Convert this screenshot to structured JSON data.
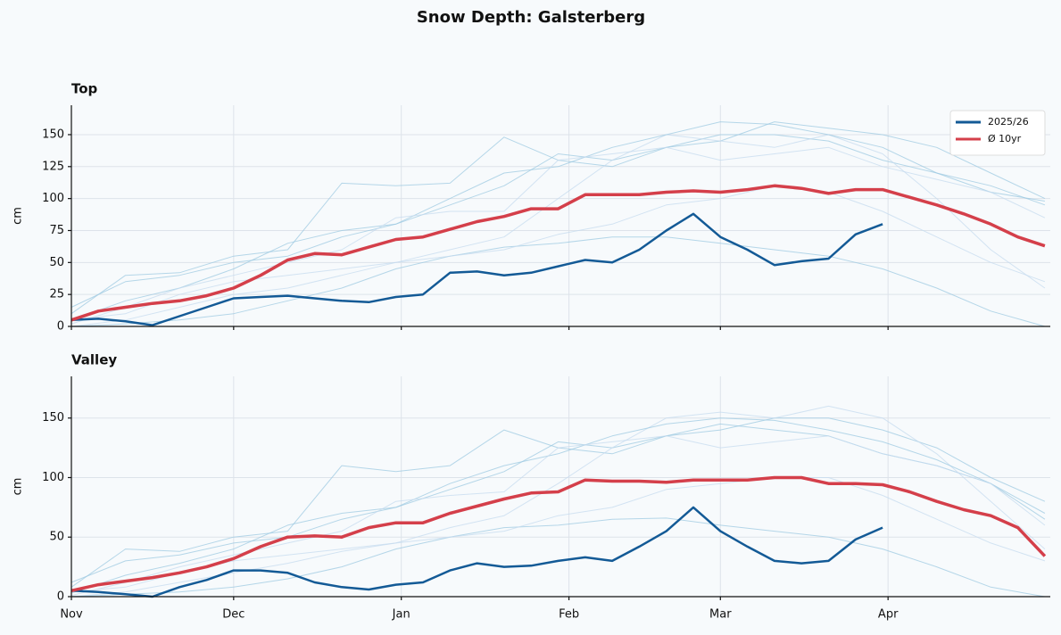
{
  "title": "Snow Depth: Galsterberg",
  "chart_data": [
    {
      "type": "line",
      "title": "Top",
      "ylabel": "cm",
      "ylim": [
        0,
        173
      ],
      "yticks": [
        0,
        25,
        50,
        75,
        100,
        125,
        150
      ],
      "xlim": [
        0,
        181
      ],
      "xticks": [
        0,
        30,
        61,
        92,
        120,
        151
      ],
      "grid": true,
      "legend": "upper right",
      "x": [
        0,
        5,
        10,
        15,
        20,
        25,
        30,
        35,
        40,
        45,
        50,
        55,
        60,
        65,
        70,
        75,
        80,
        85,
        90,
        95,
        100,
        105,
        110,
        115,
        120,
        125,
        130,
        135,
        140,
        145,
        150,
        155,
        160,
        165,
        170,
        175,
        180
      ],
      "series": [
        {
          "color": "#9ecae1",
          "x": [
            0,
            10,
            20,
            30,
            40,
            50,
            60,
            70,
            80,
            90,
            100,
            110,
            120,
            130,
            140,
            150,
            160,
            170,
            180
          ],
          "values": [
            10,
            40,
            42,
            55,
            60,
            112,
            110,
            112,
            148,
            130,
            125,
            140,
            150,
            150,
            145,
            130,
            120,
            105,
            98
          ]
        },
        {
          "color": "#9ecae1",
          "x": [
            0,
            10,
            20,
            30,
            40,
            50,
            60,
            70,
            80,
            90,
            100,
            110,
            120,
            130,
            140,
            150,
            160,
            170,
            180
          ],
          "values": [
            5,
            20,
            30,
            45,
            65,
            75,
            80,
            95,
            110,
            135,
            130,
            140,
            145,
            160,
            155,
            150,
            140,
            120,
            100
          ]
        },
        {
          "color": "#c6dbef",
          "x": [
            0,
            10,
            20,
            30,
            40,
            50,
            60,
            70,
            80,
            90,
            100,
            110,
            120,
            130,
            140,
            150,
            160,
            170,
            180
          ],
          "values": [
            0,
            5,
            15,
            25,
            30,
            40,
            50,
            60,
            70,
            100,
            130,
            150,
            145,
            140,
            150,
            135,
            100,
            60,
            30
          ]
        },
        {
          "color": "#9ecae1",
          "x": [
            0,
            10,
            20,
            30,
            40,
            50,
            60,
            70,
            80,
            90,
            100,
            110,
            120,
            130,
            140,
            150,
            160,
            170,
            180
          ],
          "values": [
            15,
            35,
            40,
            50,
            55,
            70,
            80,
            100,
            120,
            125,
            140,
            150,
            160,
            158,
            150,
            140,
            120,
            110,
            95
          ]
        },
        {
          "color": "#9ecae1",
          "x": [
            0,
            10,
            20,
            30,
            40,
            50,
            60,
            70,
            80,
            90,
            100,
            110,
            120,
            130,
            140,
            150,
            160,
            170,
            180
          ],
          "values": [
            0,
            2,
            5,
            10,
            20,
            30,
            45,
            55,
            62,
            65,
            70,
            70,
            65,
            60,
            55,
            45,
            30,
            12,
            0
          ]
        },
        {
          "color": "#c6dbef",
          "x": [
            0,
            10,
            20,
            30,
            40,
            50,
            60,
            70,
            80,
            90,
            100,
            110,
            120,
            130,
            140,
            150,
            160,
            170,
            180
          ],
          "values": [
            5,
            10,
            25,
            35,
            40,
            45,
            50,
            55,
            60,
            72,
            80,
            95,
            100,
            110,
            105,
            90,
            70,
            50,
            35
          ]
        },
        {
          "color": "#c6dbef",
          "x": [
            0,
            10,
            20,
            30,
            40,
            50,
            60,
            70,
            80,
            90,
            100,
            110,
            120,
            130,
            140,
            150,
            160,
            170,
            180
          ],
          "values": [
            2,
            15,
            30,
            40,
            50,
            60,
            85,
            90,
            90,
            130,
            135,
            140,
            130,
            135,
            140,
            125,
            115,
            105,
            85
          ]
        },
        {
          "name": "2025/26",
          "color": "#135a96",
          "values": [
            5,
            6,
            4,
            1,
            8,
            15,
            22,
            23,
            24,
            22,
            20,
            19,
            23,
            25,
            42,
            43,
            40,
            42,
            47,
            52,
            50,
            60,
            75,
            88,
            70,
            60,
            48,
            51,
            53,
            72,
            80,
            null,
            null,
            null,
            null,
            null,
            null
          ]
        },
        {
          "name": "Ø 10yr",
          "color": "#d43f4a",
          "values": [
            5,
            12,
            15,
            18,
            20,
            24,
            30,
            40,
            52,
            57,
            56,
            62,
            68,
            70,
            76,
            82,
            86,
            92,
            92,
            103,
            103,
            103,
            105,
            106,
            105,
            107,
            110,
            108,
            104,
            107,
            107,
            101,
            95,
            88,
            80,
            70,
            63
          ]
        }
      ]
    },
    {
      "type": "line",
      "title": "Valley",
      "ylabel": "cm",
      "ylim": [
        0,
        185
      ],
      "yticks": [
        0,
        50,
        100,
        150
      ],
      "xlim": [
        0,
        181
      ],
      "xticks": [
        {
          "value": 0,
          "label": "Nov"
        },
        {
          "value": 30,
          "label": "Dec"
        },
        {
          "value": 61,
          "label": "Jan"
        },
        {
          "value": 92,
          "label": "Feb"
        },
        {
          "value": 120,
          "label": "Mar"
        },
        {
          "value": 151,
          "label": "Apr"
        }
      ],
      "grid": true,
      "x": [
        0,
        5,
        10,
        15,
        20,
        25,
        30,
        35,
        40,
        45,
        50,
        55,
        60,
        65,
        70,
        75,
        80,
        85,
        90,
        95,
        100,
        105,
        110,
        115,
        120,
        125,
        130,
        135,
        140,
        145,
        150,
        155,
        160,
        165,
        170,
        175,
        180
      ],
      "series": [
        {
          "color": "#9ecae1",
          "x": [
            0,
            10,
            20,
            30,
            40,
            50,
            60,
            70,
            80,
            90,
            100,
            110,
            120,
            130,
            140,
            150,
            160,
            170,
            180
          ],
          "values": [
            8,
            40,
            38,
            50,
            55,
            110,
            105,
            110,
            140,
            125,
            120,
            135,
            145,
            140,
            135,
            120,
            110,
            95,
            70
          ]
        },
        {
          "color": "#9ecae1",
          "x": [
            0,
            10,
            20,
            30,
            40,
            50,
            60,
            70,
            80,
            90,
            100,
            110,
            120,
            130,
            140,
            150,
            160,
            170,
            180
          ],
          "values": [
            3,
            18,
            28,
            40,
            60,
            70,
            75,
            90,
            105,
            130,
            125,
            135,
            140,
            150,
            150,
            140,
            125,
            100,
            80
          ]
        },
        {
          "color": "#c6dbef",
          "x": [
            0,
            10,
            20,
            30,
            40,
            50,
            60,
            70,
            80,
            90,
            100,
            110,
            120,
            130,
            140,
            150,
            160,
            170,
            180
          ],
          "values": [
            0,
            4,
            12,
            20,
            28,
            38,
            45,
            58,
            68,
            95,
            125,
            150,
            155,
            150,
            160,
            150,
            120,
            80,
            40
          ]
        },
        {
          "color": "#9ecae1",
          "x": [
            0,
            10,
            20,
            30,
            40,
            50,
            60,
            70,
            80,
            90,
            100,
            110,
            120,
            130,
            140,
            150,
            160,
            170,
            180
          ],
          "values": [
            12,
            30,
            35,
            45,
            50,
            65,
            75,
            95,
            110,
            120,
            135,
            145,
            150,
            148,
            140,
            130,
            115,
            95,
            65
          ]
        },
        {
          "color": "#9ecae1",
          "x": [
            0,
            10,
            20,
            30,
            40,
            50,
            60,
            70,
            80,
            90,
            100,
            110,
            120,
            130,
            140,
            150,
            160,
            170,
            180
          ],
          "values": [
            0,
            2,
            4,
            8,
            15,
            25,
            40,
            50,
            58,
            60,
            65,
            66,
            60,
            55,
            50,
            40,
            25,
            8,
            0
          ]
        },
        {
          "color": "#c6dbef",
          "x": [
            0,
            10,
            20,
            30,
            40,
            50,
            60,
            70,
            80,
            90,
            100,
            110,
            120,
            130,
            140,
            150,
            160,
            170,
            180
          ],
          "values": [
            4,
            8,
            20,
            30,
            35,
            40,
            45,
            50,
            55,
            68,
            75,
            90,
            95,
            100,
            100,
            85,
            65,
            45,
            30
          ]
        },
        {
          "color": "#c6dbef",
          "x": [
            0,
            10,
            20,
            30,
            40,
            50,
            60,
            70,
            80,
            90,
            100,
            110,
            120,
            130,
            140,
            150,
            160,
            170,
            180
          ],
          "values": [
            1,
            12,
            25,
            35,
            45,
            55,
            80,
            85,
            88,
            125,
            130,
            135,
            125,
            130,
            135,
            120,
            110,
            95,
            60
          ]
        },
        {
          "color": "#135a96",
          "values": [
            5,
            4,
            2,
            0,
            8,
            14,
            22,
            22,
            20,
            12,
            8,
            6,
            10,
            12,
            22,
            28,
            25,
            26,
            30,
            33,
            30,
            42,
            55,
            75,
            55,
            42,
            30,
            28,
            30,
            48,
            58,
            null,
            null,
            null,
            null,
            null,
            null
          ]
        },
        {
          "color": "#d43f4a",
          "values": [
            5,
            10,
            13,
            16,
            20,
            25,
            32,
            42,
            50,
            51,
            50,
            58,
            62,
            62,
            70,
            76,
            82,
            87,
            88,
            98,
            97,
            97,
            96,
            98,
            98,
            98,
            100,
            100,
            95,
            95,
            94,
            88,
            80,
            73,
            68,
            58,
            34
          ]
        }
      ]
    }
  ]
}
